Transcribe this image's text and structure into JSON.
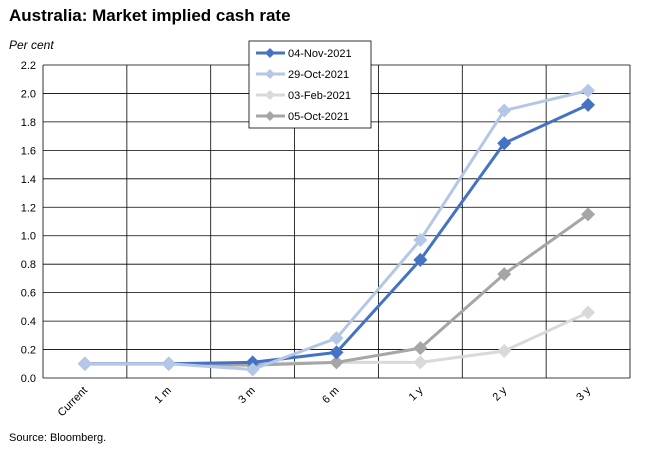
{
  "title": "Australia: Market implied cash rate",
  "unit_label": "Per cent",
  "source": "Source: Bloomberg.",
  "chart_data": {
    "type": "line",
    "title": "Australia: Market implied cash rate",
    "ylabel": "Per cent",
    "xlabel": "",
    "categories": [
      "Current",
      "1 m",
      "3 m",
      "6 m",
      "1 y",
      "2 y",
      "3 y"
    ],
    "ylim": [
      0,
      2.2
    ],
    "yticks": [
      0.0,
      0.2,
      0.4,
      0.6,
      0.8,
      1.0,
      1.2,
      1.4,
      1.6,
      1.8,
      2.0,
      2.2
    ],
    "ytick_labels": [
      "0.0",
      "0.2",
      "0.4",
      "0.6",
      "0.8",
      "1.0",
      "1.2",
      "1.4",
      "1.6",
      "1.8",
      "2.0",
      "2.2"
    ],
    "grid": true,
    "legend_position": "top-center",
    "series": [
      {
        "name": "04-Nov-2021",
        "color": "#4472c4",
        "values": [
          0.1,
          0.1,
          0.11,
          0.18,
          0.83,
          1.65,
          1.92
        ]
      },
      {
        "name": "29-Oct-2021",
        "color": "#b4c7e7",
        "values": [
          0.1,
          0.1,
          0.06,
          0.28,
          0.97,
          1.88,
          2.02
        ]
      },
      {
        "name": "03-Feb-2021",
        "color": "#d9d9d9",
        "values": [
          0.1,
          0.1,
          0.1,
          0.11,
          0.11,
          0.19,
          0.46
        ]
      },
      {
        "name": "05-Oct-2021",
        "color": "#a6a6a6",
        "values": [
          0.1,
          0.1,
          0.09,
          0.11,
          0.21,
          0.73,
          1.15
        ]
      }
    ],
    "legend_order": [
      0,
      1,
      2,
      3
    ],
    "draw_order": [
      2,
      3,
      0,
      1
    ]
  }
}
